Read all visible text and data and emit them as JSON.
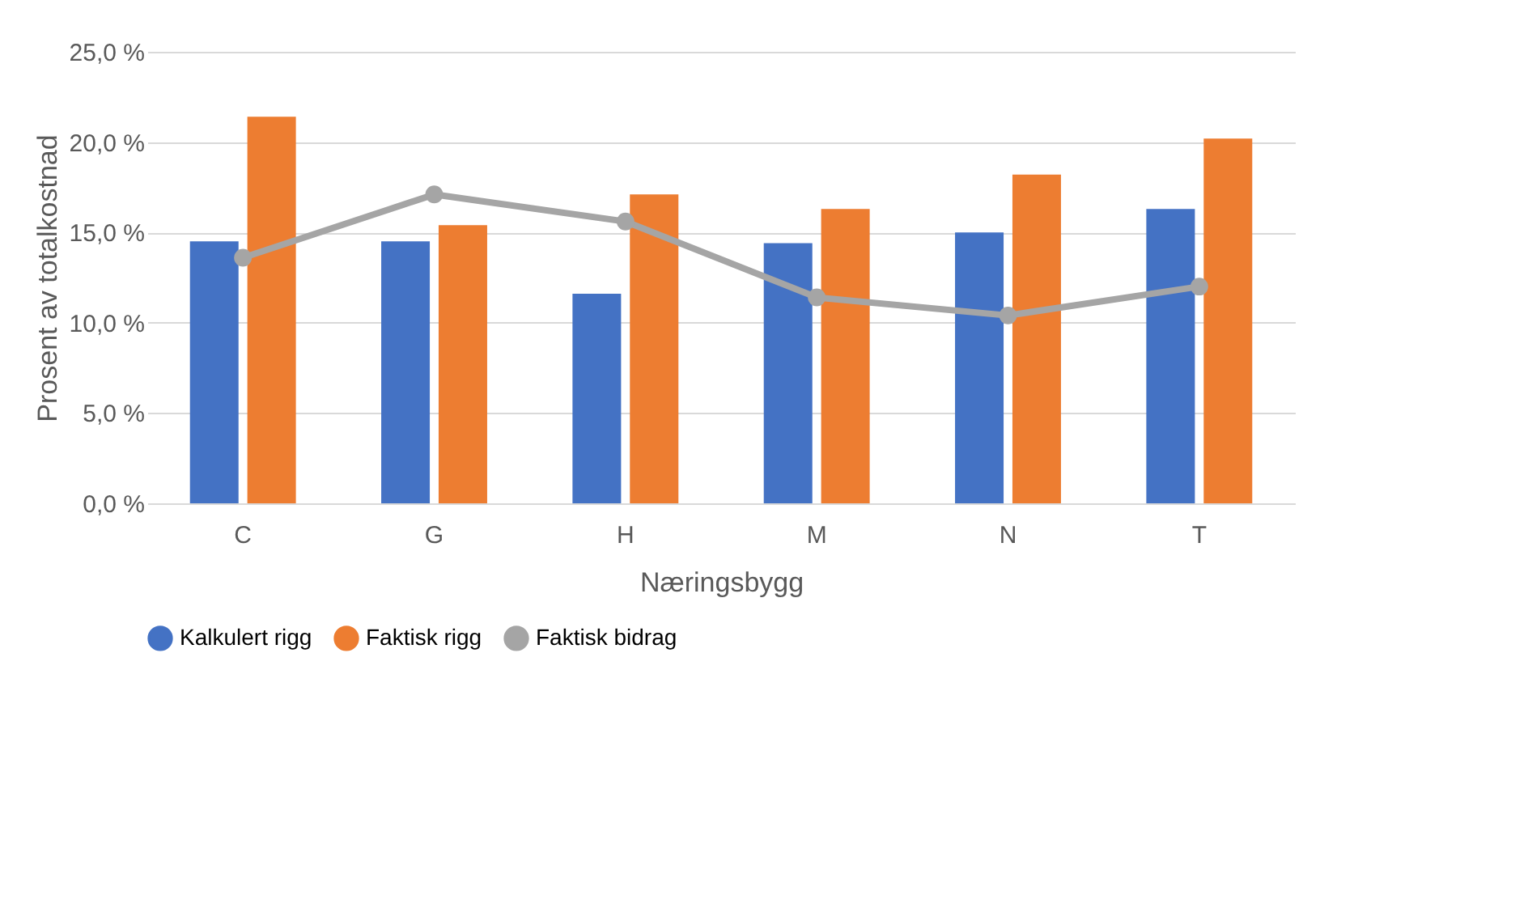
{
  "chart_data": {
    "type": "bar",
    "xlabel": "Næringsbygg",
    "ylabel": "Prosent av totalkostnad",
    "categories": [
      "C",
      "G",
      "H",
      "M",
      "N",
      "T"
    ],
    "series": [
      {
        "name": "Kalkulert rigg",
        "color": "#4472c4",
        "values": [
          14.5,
          14.5,
          11.6,
          14.4,
          15.0,
          16.3
        ]
      },
      {
        "name": "Faktisk rigg",
        "color": "#ed7d31",
        "values": [
          21.4,
          15.4,
          17.1,
          16.3,
          18.2,
          20.2
        ]
      },
      {
        "name": "Faktisk bidrag",
        "color": "#a5a5a5",
        "type": "line",
        "marker": "circle",
        "values": [
          13.6,
          17.1,
          15.6,
          11.4,
          10.4,
          12.0
        ]
      }
    ],
    "ylim": [
      0,
      25
    ],
    "yticks": [
      {
        "value": 0,
        "label": "0,0 %"
      },
      {
        "value": 5,
        "label": "5,0 %"
      },
      {
        "value": 10,
        "label": "10,0 %"
      },
      {
        "value": 15,
        "label": "15,0 %"
      },
      {
        "value": 20,
        "label": "20,0 %"
      },
      {
        "value": 25,
        "label": "25,0 %"
      }
    ],
    "grid": "y",
    "legend": "bottom"
  }
}
